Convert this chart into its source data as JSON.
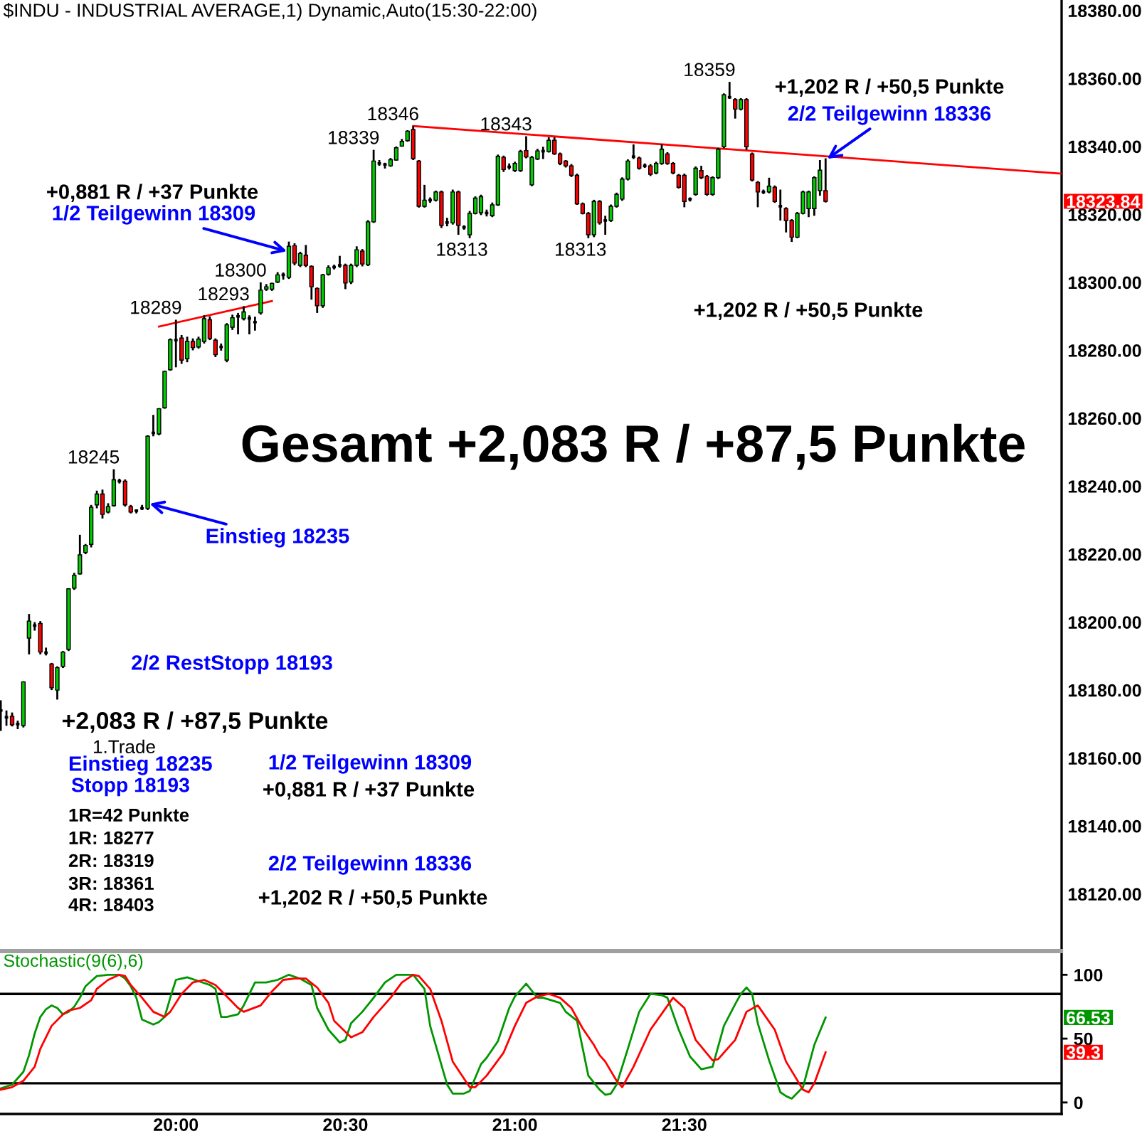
{
  "chart_data": [
    {
      "type": "candlestick",
      "title": "$INDU - INDUSTRIAL AVERAGE,1) Dynamic,Auto(15:30-22:00)",
      "x": [
        19.4833,
        19.5,
        19.5167,
        19.5333,
        19.55,
        19.5667,
        19.5833,
        19.6,
        19.6167,
        19.6333,
        19.65,
        19.6667,
        19.6833,
        19.7,
        19.7167,
        19.7333,
        19.75,
        19.7667,
        19.7833,
        19.8,
        19.8167,
        19.8333,
        19.85,
        19.8667,
        19.8833,
        19.9,
        19.9167,
        19.9333,
        19.95,
        19.9667,
        19.9833,
        20,
        20.0167,
        20.0333,
        20.05,
        20.0667,
        20.0833,
        20.1,
        20.1167,
        20.1333,
        20.15,
        20.1667,
        20.1833,
        20.2,
        20.2167,
        20.2333,
        20.25,
        20.2667,
        20.2833,
        20.3,
        20.3167,
        20.3333,
        20.35,
        20.3667,
        20.3833,
        20.4,
        20.4167,
        20.4333,
        20.45,
        20.4667,
        20.4833,
        20.5,
        20.5167,
        20.5333,
        20.55,
        20.5667,
        20.5833,
        20.6,
        20.6167,
        20.6333,
        20.65,
        20.6667,
        20.6833,
        20.7,
        20.7167,
        20.7333,
        20.75,
        20.7667,
        20.7833,
        20.8,
        20.8167,
        20.8333,
        20.85,
        20.8667,
        20.8833,
        20.9,
        20.9167,
        20.9333,
        20.95,
        20.9667,
        20.9833,
        21,
        21.0167,
        21.0333,
        21.05,
        21.0667,
        21.0833,
        21.1,
        21.1167,
        21.1333,
        21.15,
        21.1667,
        21.1833,
        21.2,
        21.2167,
        21.2333,
        21.25,
        21.2667,
        21.2833,
        21.3,
        21.3167,
        21.3333,
        21.35,
        21.3667,
        21.3833,
        21.4,
        21.4167,
        21.4333,
        21.45,
        21.4667,
        21.4833,
        21.5,
        21.5167,
        21.5333,
        21.55,
        21.5667,
        21.5833,
        21.6,
        21.6167,
        21.6333,
        21.65,
        21.6667,
        21.6833,
        21.7,
        21.7167,
        21.7333,
        21.75,
        21.7667,
        21.7833,
        21.8,
        21.8167,
        21.8333,
        21.85,
        21.8667,
        21.8833,
        21.9,
        21.9167
      ],
      "ohlc": [
        [
          18174,
          18177,
          18168,
          18174
        ],
        [
          18172,
          18174,
          18169.5,
          18172
        ],
        [
          18172.3,
          18173.4,
          18169.3,
          18169.8
        ],
        [
          18170,
          18171,
          18168.5,
          18170
        ],
        [
          18169.6,
          18182.6,
          18169,
          18182.4
        ],
        [
          18195.3,
          18202.4,
          18190.5,
          18200.3
        ],
        [
          18199,
          18200,
          18197.5,
          18199
        ],
        [
          18199.6,
          18200.3,
          18190.5,
          18191.2
        ],
        [
          18191,
          18192.5,
          18190.2,
          18191
        ],
        [
          18187.7,
          18188,
          18180,
          18180.7
        ],
        [
          18180,
          18187,
          18177.2,
          18186.6
        ],
        [
          18187,
          18191.5,
          18186.5,
          18191.2
        ],
        [
          18192,
          18210,
          18191.5,
          18209.8
        ],
        [
          18210,
          18214.5,
          18209.5,
          18213.8
        ],
        [
          18214.2,
          18225.7,
          18214,
          18219.8
        ],
        [
          18220.5,
          18223,
          18220,
          18222.6
        ],
        [
          18222.9,
          18234.5,
          18222,
          18233.8
        ],
        [
          18234.5,
          18238.7,
          18233.5,
          18237.7
        ],
        [
          18237.7,
          18239,
          18230.5,
          18231.7
        ],
        [
          18232.4,
          18235,
          18232,
          18234
        ],
        [
          18234.3,
          18245,
          18234,
          18241.9
        ],
        [
          18241.5,
          18242.2,
          18240.8,
          18241.5
        ],
        [
          18241.5,
          18242,
          18234,
          18234.5
        ],
        [
          18234,
          18234.5,
          18232,
          18232.4
        ],
        [
          18232.8,
          18233.2,
          18232,
          18232.8
        ],
        [
          18233.5,
          18234.5,
          18233,
          18233.5
        ],
        [
          18233.5,
          18255,
          18233,
          18254.7
        ],
        [
          18255.7,
          18261,
          18254.7,
          18255.7
        ],
        [
          18255.4,
          18263,
          18255,
          18262.8
        ],
        [
          18263.1,
          18274,
          18262.8,
          18273.8
        ],
        [
          18274.3,
          18283.5,
          18274,
          18283.1
        ],
        [
          18283,
          18289,
          18275,
          18283
        ],
        [
          18283.6,
          18284.5,
          18276,
          18277.1
        ],
        [
          18277.5,
          18284,
          18276.5,
          18282.6
        ],
        [
          18282.6,
          18283.5,
          18280,
          18280.8
        ],
        [
          18281,
          18284,
          18280.5,
          18283.3
        ],
        [
          18282.6,
          18290.3,
          18282,
          18289.3
        ],
        [
          18289,
          18290,
          18283,
          18283.5
        ],
        [
          18283,
          18283.5,
          18278,
          18278.7
        ],
        [
          18281,
          18282,
          18279.9,
          18281
        ],
        [
          18277.1,
          18288,
          18276.5,
          18287.5
        ],
        [
          18286.8,
          18290.5,
          18286,
          18289.6
        ],
        [
          18290,
          18291,
          18284.7,
          18290
        ],
        [
          18289.3,
          18293,
          18288.8,
          18291.3
        ],
        [
          18289.4,
          18290.3,
          18284.7,
          18289.4
        ],
        [
          18288.3,
          18289.9,
          18285.8,
          18288.3
        ],
        [
          18291,
          18300,
          18290.5,
          18297.7
        ],
        [
          18298,
          18299.5,
          18297.5,
          18298.7
        ],
        [
          18298,
          18299.9,
          18297.5,
          18299.7
        ],
        [
          18300.1,
          18303,
          18299.8,
          18302.2
        ],
        [
          18302.2,
          18302.9,
          18300.8,
          18302.2
        ],
        [
          18301.5,
          18312,
          18301,
          18310.6
        ],
        [
          18310.8,
          18311.5,
          18305,
          18305.7
        ],
        [
          18305,
          18309,
          18304.5,
          18308.5
        ],
        [
          18308,
          18311,
          18304.5,
          18305
        ],
        [
          18304.7,
          18305,
          18294.9,
          18298.7
        ],
        [
          18298.2,
          18298.5,
          18291,
          18293.1
        ],
        [
          18293.1,
          18302.5,
          18292.5,
          18302.2
        ],
        [
          18302.4,
          18305,
          18302,
          18304.3
        ],
        [
          18304.5,
          18305.2,
          18303.8,
          18304.5
        ],
        [
          18305,
          18307.8,
          18304.3,
          18305
        ],
        [
          18305,
          18305.5,
          18298,
          18299.8
        ],
        [
          18300.1,
          18305.5,
          18299.5,
          18305
        ],
        [
          18305,
          18310.6,
          18304.5,
          18309.6
        ],
        [
          18309.2,
          18309.8,
          18304.7,
          18305.4
        ],
        [
          18305.2,
          18318.3,
          18304.8,
          18317.8
        ],
        [
          18317.8,
          18339,
          18317.5,
          18335.7
        ],
        [
          18335,
          18336,
          18334.3,
          18335
        ],
        [
          18334.7,
          18335.2,
          18333.5,
          18334.7
        ],
        [
          18334.3,
          18336.6,
          18334,
          18336.1
        ],
        [
          18336,
          18340,
          18335.8,
          18339.6
        ],
        [
          18340.1,
          18342.2,
          18339.9,
          18341.5
        ],
        [
          18341.7,
          18344.8,
          18341.4,
          18344.5
        ],
        [
          18345,
          18346,
          18336,
          18336.4
        ],
        [
          18335.7,
          18336,
          18322,
          18322.4
        ],
        [
          18322.4,
          18328.7,
          18322,
          18324.2
        ],
        [
          18324.2,
          18325,
          18323.4,
          18324.2
        ],
        [
          18324.2,
          18327,
          18323.8,
          18326.6
        ],
        [
          18326.6,
          18327,
          18316,
          18316.8
        ],
        [
          18317.6,
          18319,
          18316.5,
          18317.6
        ],
        [
          18317.5,
          18327.3,
          18317,
          18326.6
        ],
        [
          18326.6,
          18327,
          18314,
          18316.8
        ],
        [
          18316.2,
          18316.8,
          18315.5,
          18316.2
        ],
        [
          18314,
          18321,
          18313,
          18320.3
        ],
        [
          18320.3,
          18325.3,
          18320,
          18324.8
        ],
        [
          18320.5,
          18325.8,
          18319.8,
          18325.2
        ],
        [
          18320.4,
          18321.4,
          18319.4,
          18320.4
        ],
        [
          18319.6,
          18323.5,
          18319.2,
          18322.8
        ],
        [
          18322.8,
          18337.6,
          18322.5,
          18337.1
        ],
        [
          18336.8,
          18337.3,
          18332.5,
          18333.2
        ],
        [
          18334,
          18335,
          18333.2,
          18334
        ],
        [
          18332.9,
          18335.5,
          18332.5,
          18335
        ],
        [
          18332.9,
          18339,
          18332.5,
          18338.5
        ],
        [
          18338.8,
          18343,
          18336.5,
          18336.9
        ],
        [
          18328.7,
          18337.2,
          18328.3,
          18336.8
        ],
        [
          18336.3,
          18339.3,
          18336,
          18338.7
        ],
        [
          18338.6,
          18339.9,
          18336.3,
          18338.6
        ],
        [
          18338.5,
          18342.7,
          18338.2,
          18341.8
        ],
        [
          18341.8,
          18342.7,
          18337.5,
          18337.8
        ],
        [
          18337.8,
          18338.2,
          18334.5,
          18335
        ],
        [
          18335.7,
          18336,
          18333.8,
          18334.3
        ],
        [
          18334.3,
          18334.8,
          18331,
          18331.5
        ],
        [
          18331.5,
          18332,
          18322.8,
          18323.1
        ],
        [
          18323.1,
          18323.5,
          18320,
          18320.3
        ],
        [
          18320.3,
          18320.7,
          18313,
          18314
        ],
        [
          18314,
          18324.3,
          18313.3,
          18323.8
        ],
        [
          18323.8,
          18324.2,
          18317,
          18317.5
        ],
        [
          18318.2,
          18319.6,
          18314,
          18318.2
        ],
        [
          18318.2,
          18322.9,
          18317.8,
          18322.4
        ],
        [
          18322.4,
          18326.4,
          18322,
          18325.9
        ],
        [
          18324.5,
          18330.9,
          18324,
          18330.4
        ],
        [
          18330.4,
          18336.2,
          18330,
          18335.7
        ],
        [
          18337,
          18340.6,
          18336.3,
          18337
        ],
        [
          18336.6,
          18337,
          18333.2,
          18333.6
        ],
        [
          18334.3,
          18335,
          18333.7,
          18334.3
        ],
        [
          18334.3,
          18334.8,
          18331.3,
          18331.8
        ],
        [
          18332.2,
          18335.5,
          18331.8,
          18335
        ],
        [
          18335,
          18340.6,
          18334.6,
          18339.2
        ],
        [
          18337.8,
          18338.3,
          18334.6,
          18335
        ],
        [
          18335,
          18335.4,
          18331.8,
          18332.2
        ],
        [
          18331.5,
          18331.9,
          18327.6,
          18328
        ],
        [
          18331.5,
          18332,
          18322.1,
          18323.8
        ],
        [
          18324.5,
          18325,
          18323.8,
          18324.5
        ],
        [
          18325.9,
          18334.1,
          18325.5,
          18333.6
        ],
        [
          18332.9,
          18334.3,
          18330.4,
          18330.8
        ],
        [
          18331.2,
          18331.6,
          18325.5,
          18325.9
        ],
        [
          18325.9,
          18331.2,
          18325.5,
          18330.8
        ],
        [
          18330.8,
          18339.6,
          18330.4,
          18339.2
        ],
        [
          18339.9,
          18355.6,
          18339.5,
          18355.2
        ],
        [
          18354.5,
          18359,
          18354,
          18354.5
        ],
        [
          18353.8,
          18354.2,
          18348.2,
          18351
        ],
        [
          18351,
          18354.2,
          18350.6,
          18353.8
        ],
        [
          18353.8,
          18354.2,
          18339,
          18339.9
        ],
        [
          18337.8,
          18338.2,
          18329.7,
          18330.1
        ],
        [
          18329.4,
          18329.8,
          18322.1,
          18326.6
        ],
        [
          18326.6,
          18327.3,
          18326,
          18326.6
        ],
        [
          18326.6,
          18330.8,
          18326.2,
          18328.3
        ],
        [
          18328,
          18328.5,
          18323.4,
          18323.8
        ],
        [
          18322.4,
          18327.3,
          18318.2,
          18322.4
        ],
        [
          18321.7,
          18322.1,
          18314.7,
          18318.2
        ],
        [
          18318.2,
          18318.6,
          18311.9,
          18313.3
        ],
        [
          18313.3,
          18320.7,
          18313,
          18320.3
        ],
        [
          18320.3,
          18327,
          18320,
          18326.6
        ],
        [
          18321.7,
          18327,
          18319.2,
          18326.6
        ],
        [
          18321.7,
          18331.2,
          18319.6,
          18330.8
        ],
        [
          18327,
          18336,
          18325.5,
          18333
        ],
        [
          18327,
          18336.5,
          18323.5,
          18323.84
        ]
      ],
      "colors": [
        "#000000",
        "#000000",
        "#ff0000",
        "#000000",
        "#00cc00",
        "#00cc00",
        "#000000",
        "#ff0000",
        "#000000",
        "#ff0000",
        "#00cc00",
        "#00cc00",
        "#00cc00",
        "#00cc00",
        "#00cc00",
        "#00cc00",
        "#00cc00",
        "#00cc00",
        "#ff0000",
        "#00cc00",
        "#00cc00",
        "#000000",
        "#ff0000",
        "#ff0000",
        "#000000",
        "#000000",
        "#00cc00",
        "#000000",
        "#00cc00",
        "#00cc00",
        "#00cc00",
        "#000000",
        "#ff0000",
        "#00cc00",
        "#ff0000",
        "#00cc00",
        "#00cc00",
        "#ff0000",
        "#ff0000",
        "#000000",
        "#00cc00",
        "#00cc00",
        "#000000",
        "#00cc00",
        "#000000",
        "#000000",
        "#00cc00",
        "#00cc00",
        "#00cc00",
        "#00cc00",
        "#000000",
        "#00cc00",
        "#ff0000",
        "#00cc00",
        "#ff0000",
        "#ff0000",
        "#ff0000",
        "#00cc00",
        "#00cc00",
        "#000000",
        "#000000",
        "#ff0000",
        "#00cc00",
        "#00cc00",
        "#ff0000",
        "#00cc00",
        "#00cc00",
        "#000000",
        "#000000",
        "#00cc00",
        "#00cc00",
        "#00cc00",
        "#00cc00",
        "#ff0000",
        "#ff0000",
        "#00cc00",
        "#000000",
        "#00cc00",
        "#ff0000",
        "#000000",
        "#00cc00",
        "#ff0000",
        "#000000",
        "#00cc00",
        "#00cc00",
        "#00cc00",
        "#000000",
        "#00cc00",
        "#00cc00",
        "#ff0000",
        "#000000",
        "#00cc00",
        "#00cc00",
        "#ff0000",
        "#00cc00",
        "#00cc00",
        "#000000",
        "#00cc00",
        "#ff0000",
        "#ff0000",
        "#ff0000",
        "#ff0000",
        "#ff0000",
        "#ff0000",
        "#ff0000",
        "#00cc00",
        "#ff0000",
        "#000000",
        "#00cc00",
        "#00cc00",
        "#00cc00",
        "#00cc00",
        "#000000",
        "#ff0000",
        "#000000",
        "#ff0000",
        "#00cc00",
        "#00cc00",
        "#ff0000",
        "#ff0000",
        "#ff0000",
        "#ff0000",
        "#000000",
        "#00cc00",
        "#ff0000",
        "#ff0000",
        "#00cc00",
        "#00cc00",
        "#00cc00",
        "#000000",
        "#ff0000",
        "#00cc00",
        "#ff0000",
        "#ff0000",
        "#ff0000",
        "#000000",
        "#00cc00",
        "#ff0000",
        "#000000",
        "#ff0000",
        "#ff0000",
        "#00cc00",
        "#00cc00",
        "#00cc00",
        "#00cc00",
        "#00cc00",
        "#ff0000"
      ],
      "series": [
        {
          "type": "line",
          "x": [
            19.95,
            20.2833
          ],
          "values": [
            18287,
            18294.5
          ],
          "color": "#ff0000"
        },
        {
          "type": "line",
          "x": [
            20.7,
            22.613
          ],
          "values": [
            18346,
            18332
          ],
          "color": "#ff0000"
        }
      ],
      "xlim": [
        19.481,
        22.613
      ],
      "ylim": [
        18103.4,
        18383.1
      ],
      "yticks": [
        {
          "value": 18120,
          "label": "18120.00"
        },
        {
          "value": 18140,
          "label": "18140.00"
        },
        {
          "value": 18160,
          "label": "18160.00"
        },
        {
          "value": 18180,
          "label": "18180.00"
        },
        {
          "value": 18200,
          "label": "18200.00"
        },
        {
          "value": 18220,
          "label": "18220.00"
        },
        {
          "value": 18240,
          "label": "18240.00"
        },
        {
          "value": 18260,
          "label": "18260.00"
        },
        {
          "value": 18280,
          "label": "18280.00"
        },
        {
          "value": 18300,
          "label": "18300.00"
        },
        {
          "value": 18320,
          "label": "18320.00"
        },
        {
          "value": 18340,
          "label": "18340.00"
        },
        {
          "value": 18360,
          "label": "18360.00"
        },
        {
          "value": 18380,
          "label": "18380.00"
        }
      ],
      "tick_labels": "y",
      "annotations": [
        {
          "text": "18289",
          "x": 20,
          "y": 18289
        },
        {
          "text": "18293",
          "x": 20.2,
          "y": 18293
        },
        {
          "text": "18300",
          "x": 20.25,
          "y": 18300
        },
        {
          "text": "18245",
          "x": 19.8167,
          "y": 18245
        },
        {
          "text": "18339",
          "x": 20.5833,
          "y": 18339
        },
        {
          "text": "18346",
          "x": 20.7,
          "y": 18346
        },
        {
          "text": "18343",
          "x": 21.0333,
          "y": 18343
        },
        {
          "text": "18359",
          "x": 21.6333,
          "y": 18359
        },
        {
          "text": "18313",
          "x": 20.8667,
          "y": 18313
        },
        {
          "text": "18313",
          "x": 21.2167,
          "y": 18313
        },
        {
          "text": "1/2 Teilgewinn 18309",
          "x": 20.3333,
          "y": 18309
        },
        {
          "text": "2/2 Teilgewinn 18336",
          "x": 21.9167,
          "y": 18336
        },
        {
          "text": "Einstieg 18235",
          "x": 19.9167,
          "y": 18235
        },
        "+0,881 R / +37 Punkte",
        "+1,202 R / +50,5 Punkte",
        "+1,202 R / +50,5 Punkte",
        "Gesamt +2,083 R / +87,5 Punkte",
        "2/2 RestStopp 18193",
        "+2,083 R / +87,5 Punkte",
        "1.Trade",
        "Einstieg 18235",
        "Stopp 18193",
        "1R=42 Punkte",
        "1R: 18277",
        "2R: 18319",
        "3R: 18361",
        "4R: 18403",
        "1/2 Teilgewinn 18309",
        "+0,881 R / +37 Punkte",
        "2/2 Teilgewinn 18336",
        "+1,202 R / +50,5 Punkte",
        "18323.84"
      ]
    },
    {
      "type": "line",
      "title": "Stochastic(9(6),6)",
      "series": [
        {
          "color": "#009600",
          "x": [
            19.4833,
            19.5167,
            19.55,
            19.5667,
            19.5833,
            19.6,
            19.6167,
            19.6333,
            19.65,
            19.6667,
            19.6833,
            19.7,
            19.7167,
            19.7333,
            19.75,
            19.7667,
            19.8,
            19.8333,
            19.85,
            19.8667,
            19.8833,
            19.9,
            19.9333,
            19.95,
            19.9667,
            19.9833,
            20,
            20.0333,
            20.0667,
            20.1,
            20.1167,
            20.1333,
            20.15,
            20.1833,
            20.2,
            20.2333,
            20.2667,
            20.3,
            20.3333,
            20.3667,
            20.4,
            20.4167,
            20.45,
            20.4833,
            20.5,
            20.5167,
            20.55,
            20.5833,
            20.6167,
            20.65,
            20.7,
            20.7333,
            20.75,
            20.8,
            20.8167,
            20.85,
            20.8667,
            20.9,
            20.9167,
            20.95,
            20.9833,
            21,
            21.0333,
            21.0667,
            21.0833,
            21.1333,
            21.15,
            21.1833,
            21.2167,
            21.25,
            21.2667,
            21.2833,
            21.3,
            21.3333,
            21.3667,
            21.4,
            21.4333,
            21.45,
            21.4833,
            21.5167,
            21.55,
            21.5833,
            21.6167,
            21.65,
            21.6667,
            21.6833,
            21.7,
            21.7167,
            21.75,
            21.7833,
            21.8,
            21.8167,
            21.85,
            21.8833,
            21.9167
          ],
          "values": [
            11,
            14,
            24,
            37,
            54,
            67,
            73,
            76,
            74,
            69,
            71,
            75,
            82,
            91,
            95,
            99,
            100,
            100,
            97,
            91,
            82,
            65,
            61,
            63,
            67,
            82,
            96,
            98,
            95,
            92,
            89,
            67,
            67,
            69,
            76,
            94,
            94,
            96,
            100,
            97,
            92,
            74,
            57,
            47,
            49,
            62,
            71,
            82,
            94,
            100,
            100,
            89,
            60,
            14,
            7,
            7,
            9,
            30,
            35,
            48,
            74,
            83,
            93,
            82,
            82,
            78,
            71,
            64,
            21,
            10,
            6,
            7,
            14,
            42,
            71,
            85,
            84,
            82,
            57,
            36,
            26,
            28,
            60,
            77,
            85,
            90,
            85,
            62,
            33,
            8,
            5,
            3,
            12,
            45,
            66.53
          ]
        },
        {
          "color": "#ff0000",
          "x": [
            19.4833,
            19.5167,
            19.55,
            19.5833,
            19.6,
            19.6333,
            19.6667,
            19.6833,
            19.7167,
            19.75,
            19.7667,
            19.8,
            19.8333,
            19.85,
            19.8667,
            19.9,
            19.9333,
            19.9667,
            19.9833,
            20.0167,
            20.05,
            20.0833,
            20.1167,
            20.15,
            20.1833,
            20.2,
            20.25,
            20.2833,
            20.3167,
            20.35,
            20.3833,
            20.4167,
            20.45,
            20.4667,
            20.5167,
            20.55,
            20.5833,
            20.6333,
            20.6667,
            20.7,
            20.7167,
            20.75,
            20.7833,
            20.8167,
            20.8667,
            20.8833,
            20.9167,
            20.9667,
            21,
            21.0333,
            21.0667,
            21.1,
            21.1333,
            21.1667,
            21.2,
            21.2333,
            21.25,
            21.2667,
            21.3,
            21.3167,
            21.35,
            21.4,
            21.4667,
            21.5,
            21.5333,
            21.5833,
            21.6,
            21.65,
            21.6833,
            21.7167,
            21.7667,
            21.8,
            21.85,
            21.8667,
            21.8833,
            21.9167
          ],
          "values": [
            10,
            12,
            17,
            28,
            42,
            60,
            69,
            72,
            74,
            80,
            89,
            96,
            100,
            99,
            92,
            82,
            71,
            67,
            71,
            85,
            94,
            96,
            92,
            83,
            74,
            71,
            76,
            87,
            96,
            97,
            97,
            90,
            78,
            64,
            51,
            55,
            67,
            82,
            94,
            100,
            99,
            89,
            64,
            32,
            12,
            12,
            21,
            39,
            60,
            78,
            83,
            85,
            82,
            74,
            58,
            45,
            37,
            32,
            17,
            12,
            28,
            57,
            82,
            74,
            49,
            33,
            34,
            49,
            71,
            76,
            57,
            32,
            10,
            8,
            15,
            39.3
          ]
        }
      ],
      "xlim": [
        19.481,
        22.613
      ],
      "ylim": [
        -9,
        118
      ],
      "yticks": [
        0,
        50,
        100
      ],
      "xticks": [
        {
          "value": 20,
          "label": "20:00"
        },
        {
          "value": 20.5,
          "label": "20:30"
        },
        {
          "value": 21,
          "label": "21:00"
        },
        {
          "value": 21.5,
          "label": "21:30"
        }
      ],
      "ref_lines": [
        {
          "axis": "y",
          "value": 85,
          "color": "#000000"
        },
        {
          "axis": "y",
          "value": 15,
          "color": "#000000"
        }
      ],
      "annotations": [
        "66.53",
        "39.3"
      ]
    }
  ]
}
